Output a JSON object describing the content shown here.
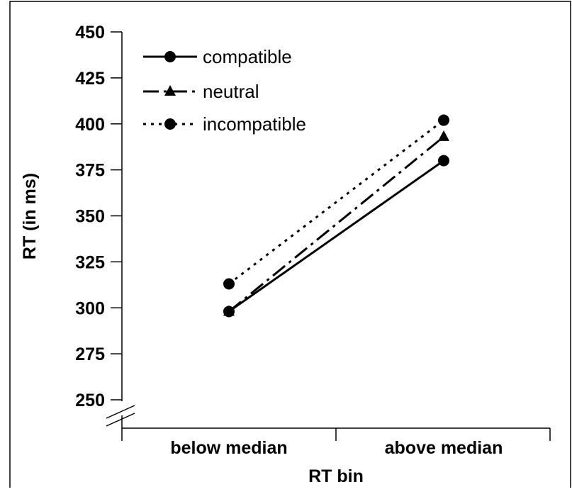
{
  "chart_data": {
    "type": "line",
    "title": "",
    "xlabel": "RT bin",
    "ylabel": "RT (in ms)",
    "categories": [
      "below median",
      "above median"
    ],
    "ylim": [
      250,
      450
    ],
    "yticks": [
      450,
      425,
      400,
      375,
      350,
      325,
      300,
      275,
      250
    ],
    "axis_break": true,
    "grid": false,
    "legend_position": "top-left",
    "series": [
      {
        "name": "compatible",
        "values": [
          298,
          380
        ],
        "marker": "circle",
        "line": "solid",
        "color": "#000000"
      },
      {
        "name": "neutral",
        "values": [
          298,
          393
        ],
        "marker": "triangle",
        "line": "dash-dot",
        "color": "#000000"
      },
      {
        "name": "incompatible",
        "values": [
          313,
          402
        ],
        "marker": "circle",
        "line": "dotted",
        "color": "#000000"
      }
    ]
  }
}
